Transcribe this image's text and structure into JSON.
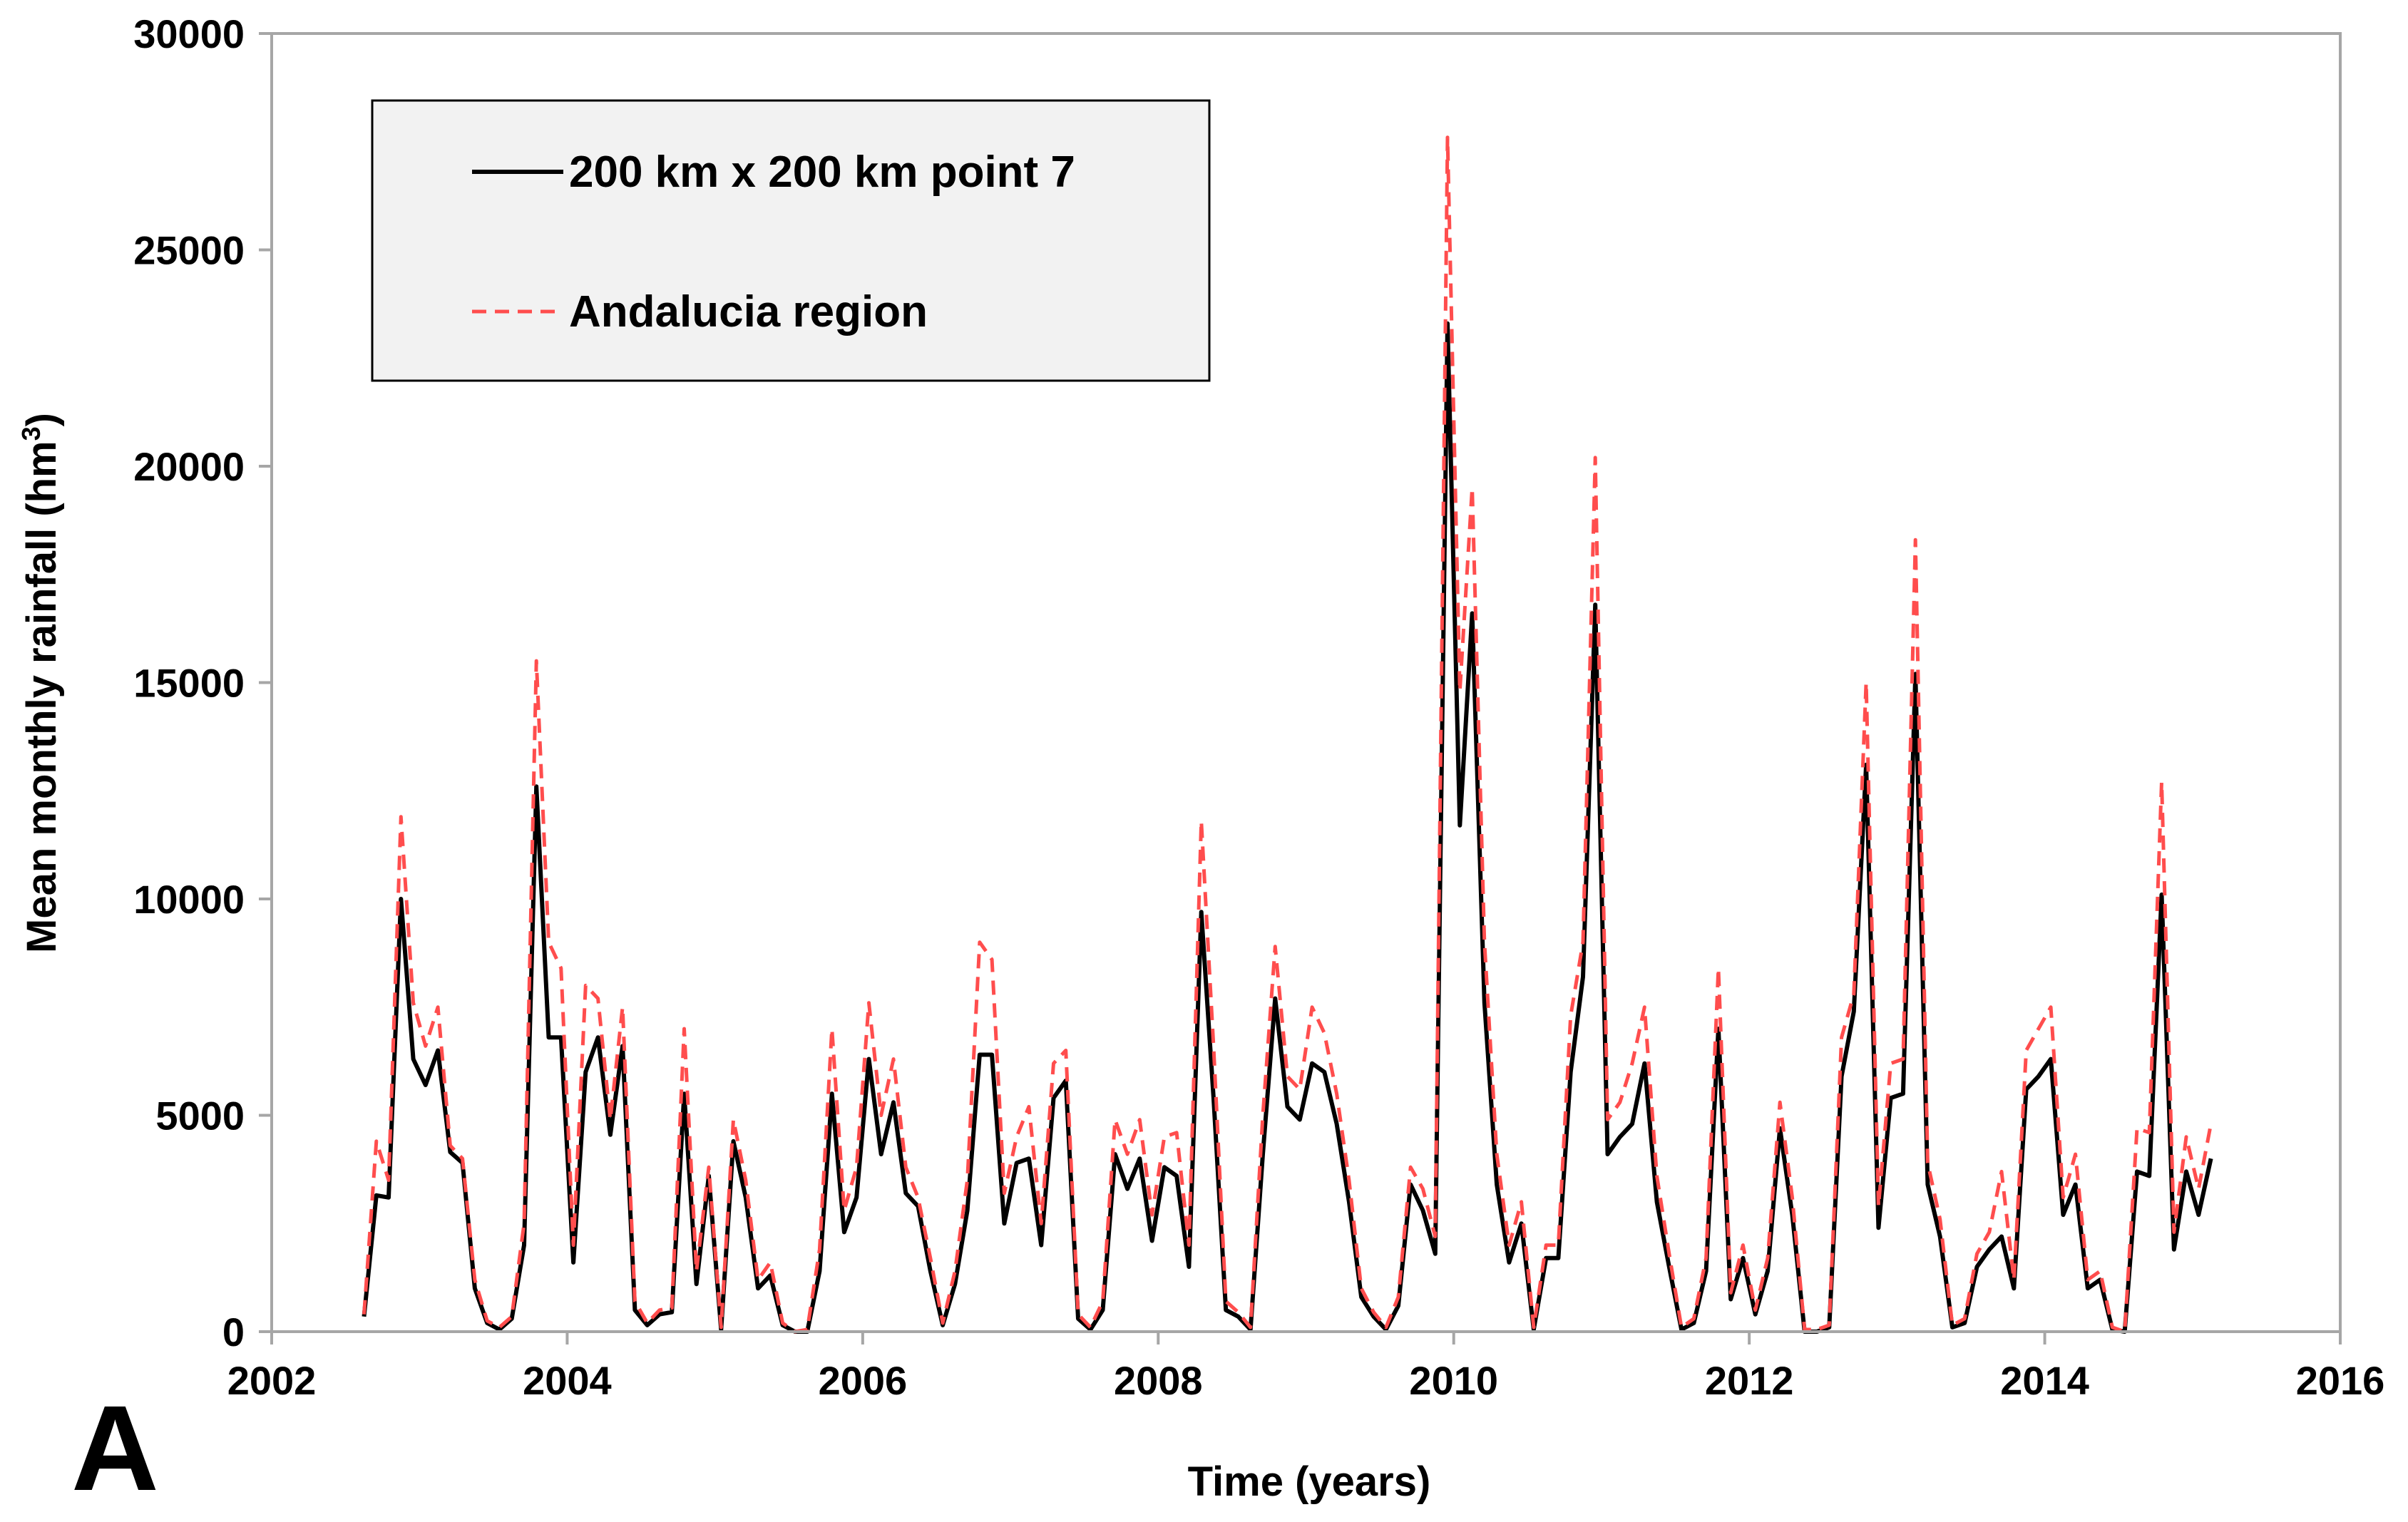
{
  "chart_data": {
    "type": "line",
    "panel_label": "A",
    "xlabel": "Time (years)",
    "ylabel": "Mean monthly rainfall (hm",
    "ylabel_superscript": "3",
    "ylabel_suffix": ")",
    "xlim": [
      2002,
      2016
    ],
    "ylim": [
      0,
      30000
    ],
    "x_ticks": [
      2002,
      2004,
      2006,
      2008,
      2010,
      2012,
      2014,
      2016
    ],
    "y_ticks": [
      0,
      5000,
      10000,
      15000,
      20000,
      25000,
      30000
    ],
    "x_tick_labels": [
      "2002",
      "2004",
      "2006",
      "2008",
      "2010",
      "2012",
      "2014",
      "2016"
    ],
    "y_tick_labels": [
      "0",
      "5000",
      "10000",
      "15000",
      "20000",
      "25000",
      "30000"
    ],
    "legend_position": "top-left",
    "start_year": 2002.625,
    "step_years": 0.08333,
    "series": [
      {
        "name": "200 km x 200 km point 7",
        "color": "#000000",
        "style": "solid",
        "values": [
          350,
          3150,
          3100,
          10000,
          6300,
          5700,
          6500,
          4150,
          3900,
          1000,
          200,
          50,
          300,
          2000,
          12600,
          6800,
          6800,
          1600,
          6000,
          6800,
          4550,
          6600,
          500,
          150,
          400,
          450,
          5500,
          1100,
          3600,
          50,
          4400,
          3100,
          1000,
          1300,
          150,
          0,
          0,
          1400,
          5500,
          2300,
          3100,
          6300,
          4100,
          5300,
          3200,
          2900,
          1400,
          150,
          1100,
          2800,
          6400,
          6400,
          2500,
          3900,
          4000,
          2000,
          5400,
          5800,
          300,
          50,
          500,
          4100,
          3300,
          4000,
          2100,
          3800,
          3600,
          1500,
          9700,
          5400,
          500,
          350,
          50,
          4100,
          7700,
          5200,
          4900,
          6200,
          6000,
          4800,
          3000,
          800,
          350,
          50,
          600,
          3400,
          2800,
          1800,
          23300,
          11700,
          16600,
          7600,
          3400,
          1600,
          2500,
          50,
          1700,
          1700,
          6000,
          8200,
          16800,
          4100,
          4500,
          4800,
          6200,
          3000,
          1500,
          50,
          200,
          1400,
          7000,
          750,
          1700,
          400,
          1400,
          4700,
          2700,
          0,
          0,
          100,
          5900,
          7400,
          13100,
          2400,
          5400,
          5500,
          15200,
          3400,
          2200,
          100,
          200,
          1500,
          1900,
          2200,
          1000,
          5600,
          5900,
          6300,
          2700,
          3400,
          1000,
          1200,
          50,
          0,
          3700,
          3600,
          10100,
          1900,
          3700,
          2700,
          4000
        ]
      },
      {
        "name": "Andalucia region",
        "color": "#ff4d4d",
        "style": "dashed",
        "values": [
          400,
          4400,
          3500,
          11900,
          7600,
          6600,
          7500,
          4300,
          4000,
          1200,
          250,
          100,
          350,
          2500,
          15500,
          9000,
          8400,
          2000,
          8000,
          7700,
          4900,
          7500,
          700,
          200,
          500,
          550,
          7000,
          1400,
          3800,
          100,
          4900,
          3500,
          1200,
          1600,
          200,
          0,
          50,
          1900,
          7000,
          2800,
          3800,
          7600,
          5000,
          6300,
          3800,
          3100,
          1700,
          200,
          1400,
          3500,
          9000,
          8600,
          3200,
          4500,
          5200,
          2500,
          6200,
          6500,
          400,
          100,
          700,
          4900,
          4100,
          4900,
          2700,
          4500,
          4600,
          2000,
          11800,
          6600,
          700,
          450,
          100,
          5000,
          8900,
          5900,
          5600,
          7500,
          6900,
          5500,
          3500,
          1000,
          450,
          100,
          800,
          3800,
          3300,
          2200,
          27600,
          14800,
          19500,
          9000,
          4100,
          2000,
          3000,
          100,
          2000,
          2000,
          7300,
          9000,
          20200,
          4900,
          5300,
          6200,
          7500,
          3600,
          1800,
          100,
          300,
          1700,
          8400,
          900,
          2000,
          500,
          1700,
          5300,
          3100,
          50,
          50,
          150,
          6800,
          7800,
          15000,
          2900,
          6200,
          6300,
          18300,
          3900,
          2600,
          150,
          300,
          1800,
          2300,
          3700,
          1200,
          6500,
          7000,
          7500,
          3100,
          4100,
          1200,
          1400,
          100,
          0,
          4700,
          4600,
          12700,
          2300,
          4500,
          3300,
          4800
        ]
      }
    ]
  }
}
